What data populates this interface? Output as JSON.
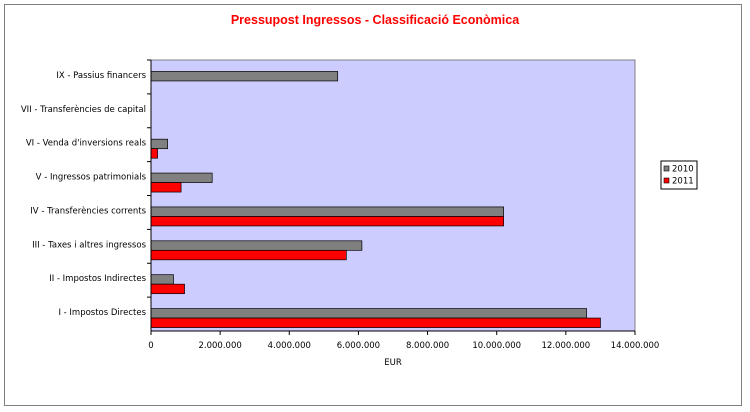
{
  "chart_data": {
    "type": "bar",
    "orientation": "horizontal",
    "title": "Pressupost Ingressos - Classificació Econòmica",
    "xlabel": "EUR",
    "ylabel": "",
    "xlim": [
      0,
      14000000
    ],
    "x_ticks": [
      0,
      2000000,
      4000000,
      6000000,
      8000000,
      10000000,
      12000000,
      14000000
    ],
    "x_tick_labels": [
      "0",
      "2.000.000",
      "4.000.000",
      "6.000.000",
      "8.000.000",
      "10.000.000",
      "12.000.000",
      "14.000.000"
    ],
    "grid": false,
    "legend_position": "right",
    "plot_background": "#ccccff",
    "categories": [
      "IX - Passius financers",
      "VII - Transferències de capital",
      "VI - Venda d'inversions reals",
      "V - Ingressos patrimonials",
      "IV - Transferències corrents",
      "III - Taxes i altres ingressos",
      "II - Impostos Indirectes",
      "I - Impostos Directes"
    ],
    "series": [
      {
        "name": "2010",
        "color": "#808080",
        "values": [
          5400000,
          0,
          480000,
          1770000,
          10200000,
          6100000,
          650000,
          12600000
        ]
      },
      {
        "name": "2011",
        "color": "#ff0000",
        "values": [
          0,
          0,
          190000,
          870000,
          10200000,
          5650000,
          970000,
          13000000
        ]
      }
    ]
  }
}
